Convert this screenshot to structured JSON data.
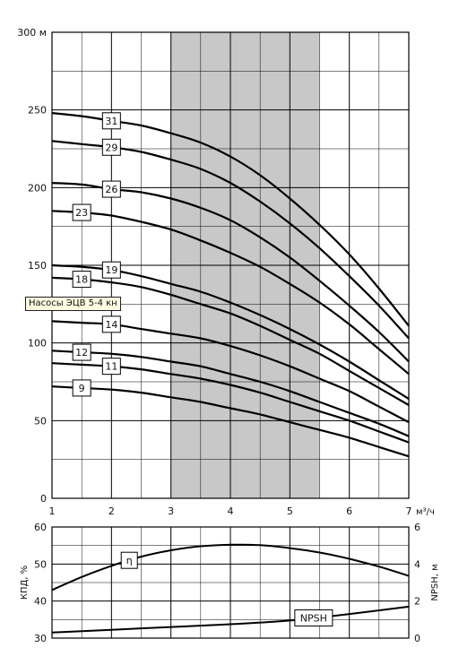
{
  "tooltip": "Насосы ЭЦВ 5-4 кн",
  "chart_data": [
    {
      "type": "line",
      "xlim": [
        1,
        7
      ],
      "ylim": [
        0,
        300
      ],
      "x_ticks": [
        1,
        2,
        3,
        4,
        5,
        6,
        7
      ],
      "y_ticks": [
        0,
        50,
        100,
        150,
        200,
        250,
        300
      ],
      "y_top_label": "300 м",
      "x_unit_label": "м³/ч",
      "operating_range": [
        3,
        5.5
      ],
      "grid": true,
      "series": [
        {
          "name": "31",
          "label_x": 2,
          "x": [
            1,
            1.5,
            2,
            2.5,
            3,
            3.5,
            4,
            4.5,
            5,
            5.5,
            6,
            6.5,
            7
          ],
          "y": [
            248,
            246,
            243,
            240,
            235,
            229,
            220,
            208,
            193,
            176,
            157,
            135,
            111
          ]
        },
        {
          "name": "29",
          "label_x": 2,
          "x": [
            1,
            1.5,
            2,
            2.5,
            3,
            3.5,
            4,
            4.5,
            5,
            5.5,
            6,
            6.5,
            7
          ],
          "y": [
            230,
            228,
            226,
            223,
            218,
            212,
            203,
            191,
            177,
            161,
            143,
            124,
            103
          ]
        },
        {
          "name": "26",
          "label_x": 2,
          "x": [
            1,
            1.5,
            2,
            2.5,
            3,
            3.5,
            4,
            4.5,
            5,
            5.5,
            6,
            6.5,
            7
          ],
          "y": [
            203,
            202,
            199,
            197,
            193,
            187,
            179,
            168,
            155,
            140,
            124,
            107,
            88
          ]
        },
        {
          "name": "23",
          "label_x": 1.5,
          "x": [
            1,
            1.5,
            2,
            2.5,
            3,
            3.5,
            4,
            4.5,
            5,
            5.5,
            6,
            6.5,
            7
          ],
          "y": [
            185,
            184,
            182,
            178,
            173,
            166,
            158,
            149,
            138,
            126,
            112,
            96,
            80
          ]
        },
        {
          "name": "19",
          "label_x": 2,
          "x": [
            1,
            1.5,
            2,
            2.5,
            3,
            3.5,
            4,
            4.5,
            5,
            5.5,
            6,
            6.5,
            7
          ],
          "y": [
            150,
            149,
            147,
            143,
            138,
            133,
            126,
            118,
            109,
            99,
            88,
            76,
            64
          ]
        },
        {
          "name": "18",
          "label_x": 1.5,
          "x": [
            1,
            1.5,
            2,
            2.5,
            3,
            3.5,
            4,
            4.5,
            5,
            5.5,
            6,
            6.5,
            7
          ],
          "y": [
            142,
            141,
            139,
            136,
            131,
            125,
            119,
            111,
            102,
            93,
            82,
            71,
            60
          ]
        },
        {
          "name": "14",
          "label_x": 2,
          "x": [
            1,
            1.5,
            2,
            2.5,
            3,
            3.5,
            4,
            4.5,
            5,
            5.5,
            6,
            6.5,
            7
          ],
          "y": [
            114,
            113,
            112,
            109,
            106,
            103,
            98,
            92,
            85,
            77,
            69,
            59,
            49
          ]
        },
        {
          "name": "12",
          "label_x": 1.5,
          "x": [
            1,
            1.5,
            2,
            2.5,
            3,
            3.5,
            4,
            4.5,
            5,
            5.5,
            6,
            6.5,
            7
          ],
          "y": [
            95,
            94,
            93,
            91,
            88,
            85,
            80,
            75,
            69,
            62,
            55,
            48,
            40
          ]
        },
        {
          "name": "11",
          "label_x": 2,
          "x": [
            1,
            1.5,
            2,
            2.5,
            3,
            3.5,
            4,
            4.5,
            5,
            5.5,
            6,
            6.5,
            7
          ],
          "y": [
            87,
            86,
            85,
            83,
            80,
            77,
            73,
            68,
            62,
            56,
            50,
            43,
            36
          ]
        },
        {
          "name": "9",
          "label_x": 1.5,
          "x": [
            1,
            1.5,
            2,
            2.5,
            3,
            3.5,
            4,
            4.5,
            5,
            5.5,
            6,
            6.5,
            7
          ],
          "y": [
            72,
            71,
            70,
            68,
            65,
            62,
            58,
            54,
            49,
            44,
            39,
            33,
            27
          ]
        }
      ]
    },
    {
      "type": "line",
      "xlim": [
        1,
        7
      ],
      "ylim": [
        30,
        60
      ],
      "y_ticks": [
        30,
        40,
        50,
        60
      ],
      "y2lim": [
        0,
        6
      ],
      "y2_ticks": [
        0,
        2,
        4,
        6
      ],
      "ylabel": "КПД, %",
      "y2label": "NPSH, м",
      "grid": true,
      "series": [
        {
          "name": "η",
          "axis": "left",
          "label_x": 2.3,
          "x": [
            1,
            1.5,
            2,
            2.5,
            3,
            3.5,
            4,
            4.5,
            5,
            5.5,
            6,
            6.5,
            7
          ],
          "y": [
            43,
            46.5,
            49.5,
            52,
            53.7,
            54.8,
            55.2,
            55.1,
            54.3,
            53.1,
            51.4,
            49.3,
            46.8
          ]
        },
        {
          "name": "NPSH",
          "axis": "right",
          "label_x": 5.4,
          "x": [
            1,
            2,
            3,
            4,
            5,
            6,
            7
          ],
          "y": [
            0.3,
            0.45,
            0.6,
            0.75,
            0.95,
            1.3,
            1.7
          ]
        }
      ]
    }
  ]
}
